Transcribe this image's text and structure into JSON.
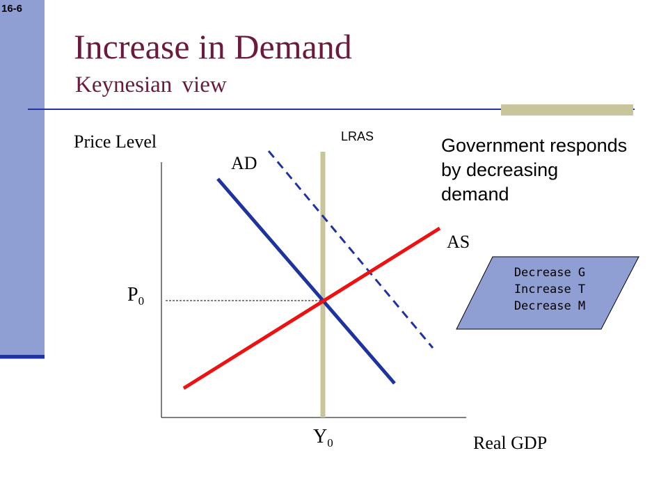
{
  "slide": {
    "number": "16-6",
    "title": "Increase in Demand",
    "subtitle": "Keynesian view"
  },
  "diagram": {
    "y_axis_label": "Price Level",
    "x_axis_label": "Real GDP",
    "curves": {
      "ad": "AD",
      "as": "AS",
      "lras": "LRAS"
    },
    "price_label": "P",
    "price_subscript": "0",
    "output_label": "Y",
    "output_subscript": "0",
    "colors": {
      "ad": "#1f33a0",
      "ad_shifted": "#1f33a0",
      "as": "#ee1111",
      "lras": "#c8c59a",
      "policy_box_fill": "#8f9ed3"
    }
  },
  "annotation": {
    "lines": [
      "Government responds",
      "by decreasing",
      "demand"
    ]
  },
  "policy_box": {
    "lines": [
      "Decrease G",
      "Increase T",
      "Decrease M"
    ]
  }
}
